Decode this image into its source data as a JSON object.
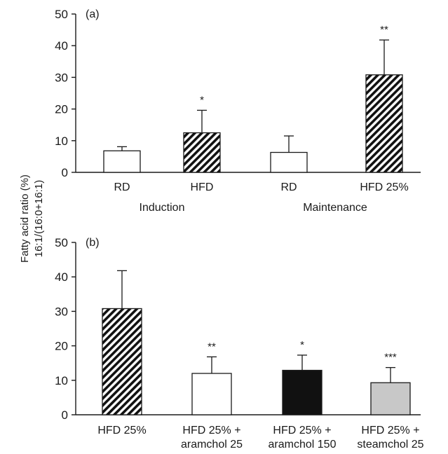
{
  "ylabel_lines": [
    "Fatty acid ratio (%)",
    "16:1/(16:0+16:1)"
  ],
  "chart_data": [
    {
      "type": "bar",
      "panel_label": "(a)",
      "ylim": [
        0,
        50
      ],
      "yticks": [
        0,
        10,
        20,
        30,
        40,
        50
      ],
      "categories": [
        "RD",
        "HFD",
        "RD",
        "HFD 25%"
      ],
      "groups": [
        {
          "label": "Induction",
          "categories": [
            "RD",
            "HFD"
          ]
        },
        {
          "label": "Maintenance",
          "categories": [
            "RD",
            "HFD 25%"
          ]
        }
      ],
      "values": [
        6.8,
        12.5,
        6.3,
        30.8
      ],
      "errors": [
        1.3,
        7.1,
        5.2,
        11.0
      ],
      "significance": [
        "",
        "*",
        "",
        "**"
      ],
      "fills": [
        "white",
        "hatch",
        "white",
        "hatch"
      ],
      "colors": {
        "white": "#ffffff",
        "black": "#111111",
        "gray": "#c8c8c8",
        "stroke": "#1a1a1a"
      }
    },
    {
      "type": "bar",
      "panel_label": "(b)",
      "ylim": [
        0,
        50
      ],
      "yticks": [
        0,
        10,
        20,
        30,
        40,
        50
      ],
      "categories": [
        [
          "HFD 25%"
        ],
        [
          "HFD 25% +",
          "aramchol 25"
        ],
        [
          "HFD 25% +",
          "aramchol 150"
        ],
        [
          "HFD 25% +",
          "steamchol 25"
        ]
      ],
      "values": [
        30.8,
        12.0,
        12.9,
        9.3
      ],
      "errors": [
        11.0,
        4.8,
        4.4,
        4.4
      ],
      "significance": [
        "",
        "**",
        "*",
        "***"
      ],
      "fills": [
        "hatch",
        "white",
        "black",
        "gray"
      ],
      "colors": {
        "white": "#ffffff",
        "black": "#111111",
        "gray": "#c8c8c8",
        "stroke": "#1a1a1a"
      }
    }
  ]
}
